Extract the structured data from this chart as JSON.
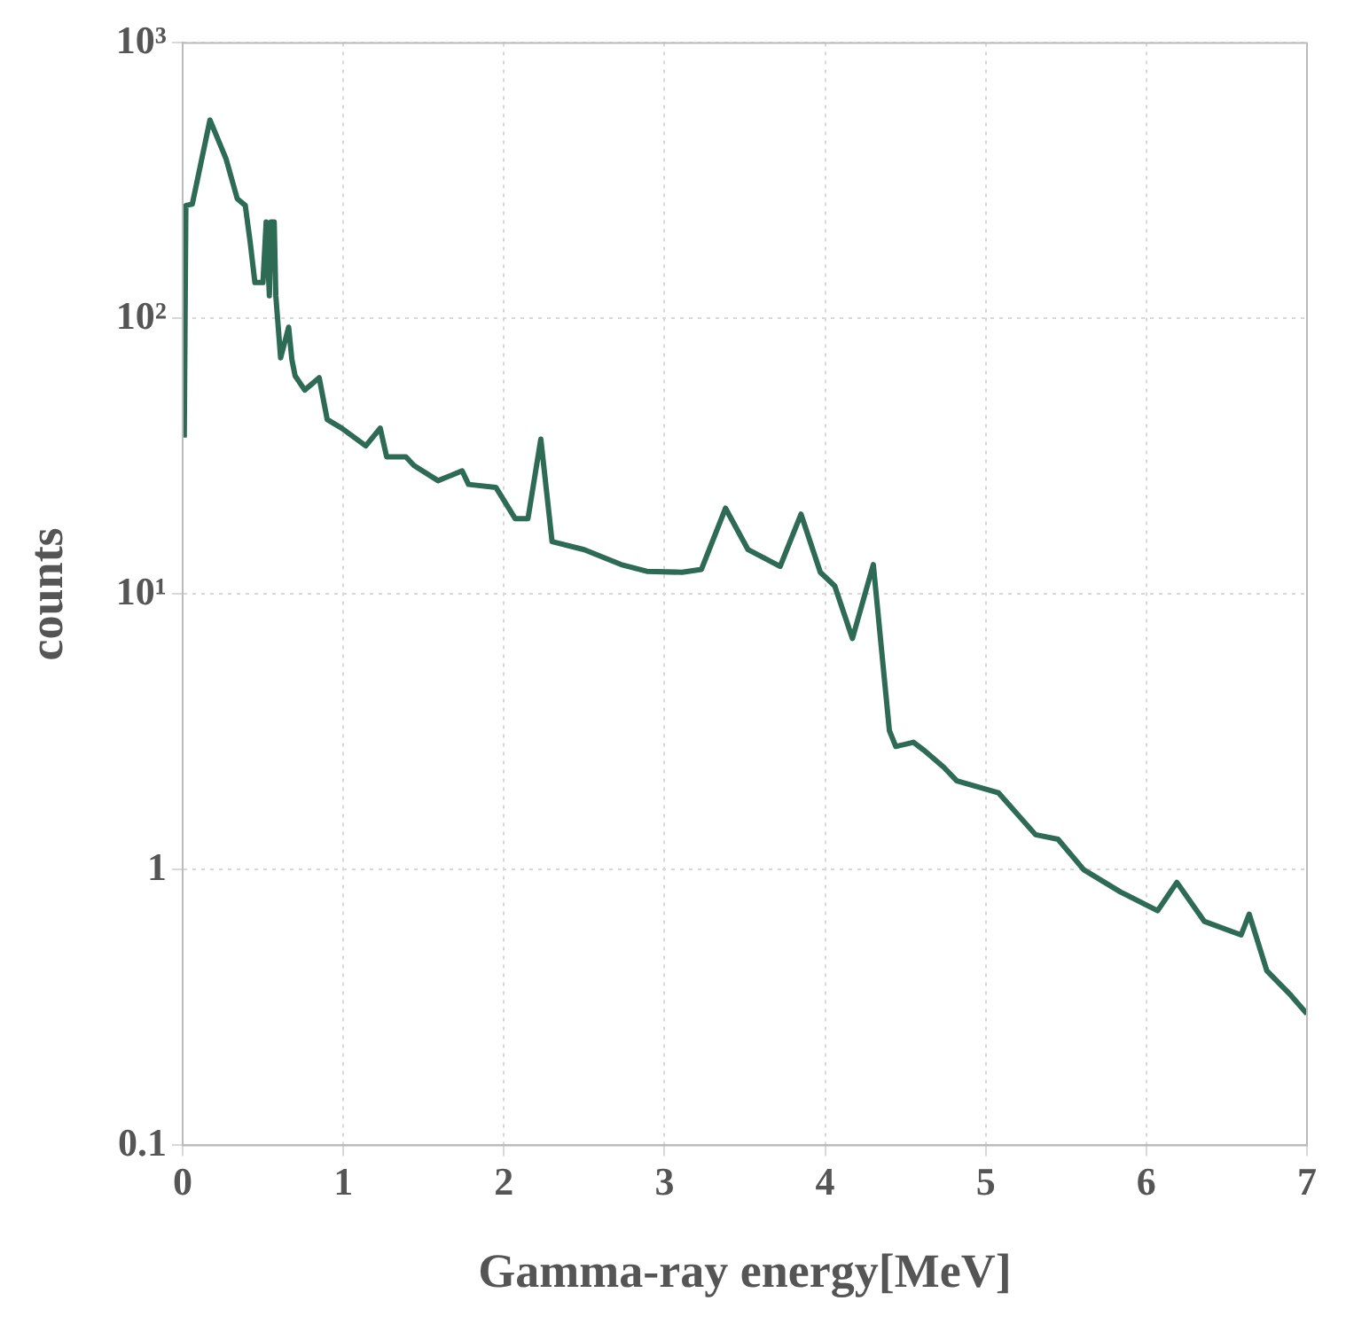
{
  "chart_data": {
    "type": "line",
    "xlabel": "Gamma-ray energy[MeV]",
    "ylabel": "counts",
    "log": "y",
    "grid": true,
    "legend": false,
    "marker": "none",
    "line_style": "solid",
    "xlim": [
      0,
      7
    ],
    "xticks": [
      0,
      1,
      2,
      3,
      4,
      5,
      6,
      7
    ],
    "ylim": [
      0.1,
      1000
    ],
    "yticks": [
      {
        "value": 0.1,
        "label": "0.1"
      },
      {
        "value": 1,
        "label": "1"
      },
      {
        "value": 10,
        "label": "10¹"
      },
      {
        "value": 100,
        "label": "10²"
      },
      {
        "value": 1000,
        "label": "10³"
      }
    ],
    "series": [
      {
        "color": "#2e6b55",
        "x": [
          0.01,
          0.02,
          0.06,
          0.17,
          0.27,
          0.34,
          0.39,
          0.42,
          0.45,
          0.5,
          0.52,
          0.54,
          0.55,
          0.57,
          0.58,
          0.61,
          0.66,
          0.68,
          0.7,
          0.76,
          0.85,
          0.9,
          0.99,
          1.14,
          1.23,
          1.27,
          1.39,
          1.44,
          1.59,
          1.74,
          1.78,
          1.95,
          2.07,
          2.15,
          2.23,
          2.3,
          2.5,
          2.73,
          2.89,
          3.11,
          3.23,
          3.38,
          3.52,
          3.72,
          3.85,
          3.97,
          4.06,
          4.17,
          4.3,
          4.4,
          4.44,
          4.55,
          4.62,
          4.74,
          4.82,
          5.08,
          5.31,
          5.45,
          5.61,
          5.84,
          6.07,
          6.19,
          6.36,
          6.59,
          6.64,
          6.75,
          6.9,
          7.0
        ],
        "values": [
          37,
          257,
          260,
          525,
          380,
          272,
          257,
          190,
          135,
          135,
          224,
          121,
          224,
          224,
          121,
          72,
          93,
          71,
          62,
          55,
          61,
          43,
          40,
          34.5,
          40,
          31.5,
          31.5,
          29.3,
          25.8,
          28,
          25,
          24.4,
          18.8,
          18.8,
          36.5,
          15.5,
          14.5,
          12.8,
          12.1,
          12,
          12.3,
          20.5,
          14.5,
          12.6,
          19.5,
          12,
          10.7,
          6.9,
          12.8,
          3.2,
          2.8,
          2.9,
          2.7,
          2.35,
          2.1,
          1.9,
          1.34,
          1.29,
          1,
          0.83,
          0.71,
          0.9,
          0.65,
          0.58,
          0.69,
          0.43,
          0.35,
          0.3
        ]
      }
    ]
  }
}
